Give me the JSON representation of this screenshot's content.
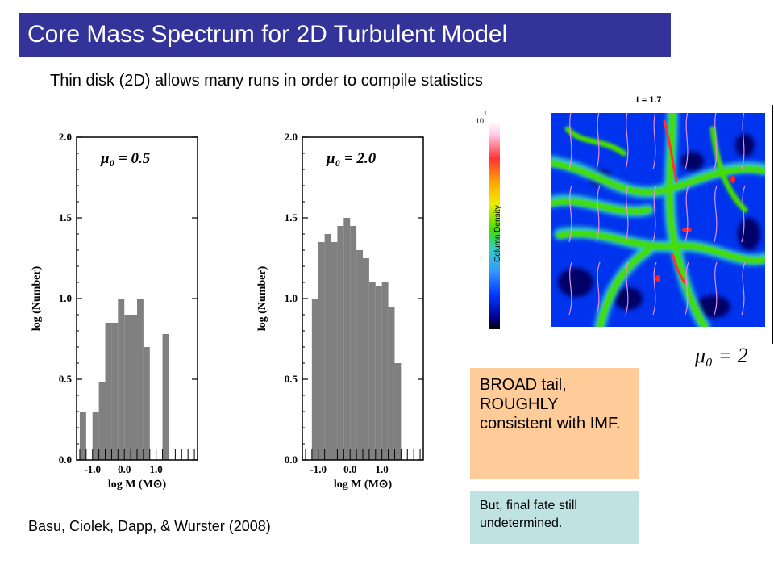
{
  "title": "Core Mass Spectrum for 2D Turbulent Model",
  "subtitle": "Thin disk (2D) allows many runs in order to compile statistics",
  "citation": "Basu, Ciolek, Dapp, & Wurster (2008)",
  "notes": {
    "broad_tail": "BROAD tail, ROUGHLY consistent with IMF.",
    "final_fate": "But, final fate still undetermined."
  },
  "colors": {
    "title_bg": "#333399",
    "bar_fill": "#808080",
    "note1_bg": "#ffcc99",
    "note2_bg": "#bfe3e3"
  },
  "chart_data": [
    {
      "type": "bar",
      "panel_label": "μ₀ = 0.5",
      "xlabel": "log M (M⊙)",
      "ylabel": "log (Number)",
      "xlim": [
        -1.5,
        2.3
      ],
      "ylim": [
        0.0,
        2.0
      ],
      "x_ticks": [
        "-1.0",
        "0.0",
        "1.0"
      ],
      "y_ticks": [
        "0.0",
        "0.5",
        "1.0",
        "1.5",
        "2.0"
      ],
      "bin_width": 0.2,
      "bins": [
        {
          "x": -1.3,
          "y": 0.3
        },
        {
          "x": -0.9,
          "y": 0.3
        },
        {
          "x": -0.7,
          "y": 0.48
        },
        {
          "x": -0.5,
          "y": 0.85
        },
        {
          "x": -0.3,
          "y": 0.85
        },
        {
          "x": -0.1,
          "y": 1.0
        },
        {
          "x": 0.1,
          "y": 0.9
        },
        {
          "x": 0.3,
          "y": 0.9
        },
        {
          "x": 0.5,
          "y": 1.0
        },
        {
          "x": 0.7,
          "y": 0.7
        },
        {
          "x": 1.3,
          "y": 0.78
        }
      ]
    },
    {
      "type": "bar",
      "panel_label": "μ₀ = 2.0",
      "xlabel": "log M (M⊙)",
      "ylabel": "log (Number)",
      "xlim": [
        -1.5,
        2.3
      ],
      "ylim": [
        0.0,
        2.0
      ],
      "x_ticks": [
        "-1.0",
        "0.0",
        "1.0"
      ],
      "y_ticks": [
        "0.0",
        "0.5",
        "1.0",
        "1.5",
        "2.0"
      ],
      "bin_width": 0.2,
      "bins": [
        {
          "x": -1.1,
          "y": 1.0
        },
        {
          "x": -0.9,
          "y": 1.35
        },
        {
          "x": -0.7,
          "y": 1.4
        },
        {
          "x": -0.5,
          "y": 1.35
        },
        {
          "x": -0.3,
          "y": 1.45
        },
        {
          "x": -0.1,
          "y": 1.5
        },
        {
          "x": 0.1,
          "y": 1.45
        },
        {
          "x": 0.3,
          "y": 1.3
        },
        {
          "x": 0.5,
          "y": 1.25
        },
        {
          "x": 0.7,
          "y": 1.1
        },
        {
          "x": 0.9,
          "y": 1.08
        },
        {
          "x": 1.1,
          "y": 1.1
        },
        {
          "x": 1.3,
          "y": 0.95
        },
        {
          "x": 1.5,
          "y": 0.6
        }
      ]
    }
  ],
  "simulation": {
    "time_label": "t = 1.7",
    "colorbar_label": "Column Density",
    "colorbar_ticks": [
      "10",
      "1"
    ],
    "colorbar_tick_exp": "1",
    "parameter_label": "μ₀ = 2"
  }
}
